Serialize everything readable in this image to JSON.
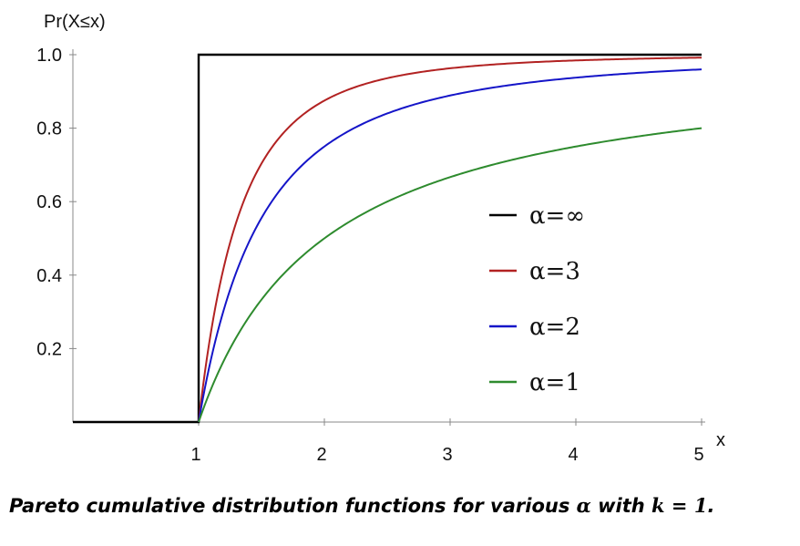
{
  "chart_data": {
    "type": "line",
    "title": "",
    "ylabel": "Pr(X≤x)",
    "xlabel": "x",
    "xlim": [
      0,
      5
    ],
    "ylim": [
      0,
      1.0
    ],
    "x_ticks": [
      1,
      2,
      3,
      4,
      5
    ],
    "x_tick_labels": [
      "1",
      "2",
      "3",
      "4",
      "5"
    ],
    "y_ticks": [
      0.2,
      0.4,
      0.6,
      0.8,
      1.0
    ],
    "y_tick_labels": [
      "0.2",
      "0.4",
      "0.6",
      "0.8",
      "1.0"
    ],
    "grid": false,
    "legend_position": "center-right",
    "k": 1,
    "series": [
      {
        "name": "α=∞",
        "alpha": "infinity",
        "color": "#000000",
        "points": [
          [
            0,
            0
          ],
          [
            1,
            0
          ],
          [
            1,
            1
          ],
          [
            5,
            1
          ]
        ]
      },
      {
        "name": "α=3",
        "alpha": 3,
        "color": "#b22222",
        "points": [
          [
            1,
            0
          ],
          [
            1.25,
            0.488
          ],
          [
            1.5,
            0.704
          ],
          [
            2,
            0.875
          ],
          [
            2.5,
            0.936
          ],
          [
            3,
            0.963
          ],
          [
            4,
            0.984
          ],
          [
            5,
            0.992
          ]
        ]
      },
      {
        "name": "α=2",
        "alpha": 2,
        "color": "#1515c8",
        "points": [
          [
            1,
            0
          ],
          [
            1.25,
            0.36
          ],
          [
            1.5,
            0.556
          ],
          [
            2,
            0.75
          ],
          [
            2.5,
            0.84
          ],
          [
            3,
            0.889
          ],
          [
            4,
            0.938
          ],
          [
            5,
            0.96
          ]
        ]
      },
      {
        "name": "α=1",
        "alpha": 1,
        "color": "#2e8b2e",
        "points": [
          [
            1,
            0
          ],
          [
            1.25,
            0.2
          ],
          [
            1.5,
            0.333
          ],
          [
            2,
            0.5
          ],
          [
            2.5,
            0.6
          ],
          [
            3,
            0.667
          ],
          [
            4,
            0.75
          ],
          [
            5,
            0.8
          ]
        ]
      }
    ]
  },
  "caption": {
    "prefix": "Pareto cumulative distribution functions for various ",
    "alpha_symbol": "α",
    "middle": " with ",
    "k_expr": "k = 1",
    "suffix": "."
  }
}
